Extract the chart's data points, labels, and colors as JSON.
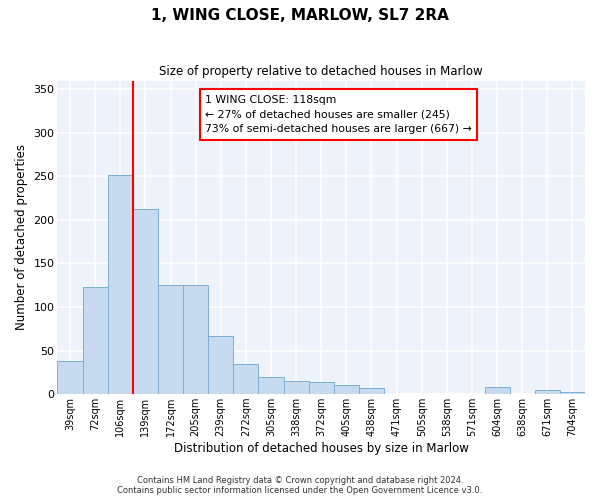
{
  "title": "1, WING CLOSE, MARLOW, SL7 2RA",
  "subtitle": "Size of property relative to detached houses in Marlow",
  "xlabel": "Distribution of detached houses by size in Marlow",
  "ylabel": "Number of detached properties",
  "footer_line1": "Contains HM Land Registry data © Crown copyright and database right 2024.",
  "footer_line2": "Contains public sector information licensed under the Open Government Licence v3.0.",
  "bar_labels": [
    "39sqm",
    "72sqm",
    "106sqm",
    "139sqm",
    "172sqm",
    "205sqm",
    "239sqm",
    "272sqm",
    "305sqm",
    "338sqm",
    "372sqm",
    "405sqm",
    "438sqm",
    "471sqm",
    "505sqm",
    "538sqm",
    "571sqm",
    "604sqm",
    "638sqm",
    "671sqm",
    "704sqm"
  ],
  "bar_values": [
    38,
    123,
    252,
    212,
    125,
    125,
    67,
    35,
    20,
    15,
    14,
    10,
    7,
    0,
    0,
    0,
    0,
    8,
    0,
    5,
    3
  ],
  "bar_color": "#c8daf0",
  "bar_edge_color": "#7aafd4",
  "vline_x_index": 2,
  "vline_color": "red",
  "ylim": [
    0,
    360
  ],
  "yticks": [
    0,
    50,
    100,
    150,
    200,
    250,
    300,
    350
  ],
  "annotation_title": "1 WING CLOSE: 118sqm",
  "annotation_line1": "← 27% of detached houses are smaller (245)",
  "annotation_line2": "73% of semi-detached houses are larger (667) →",
  "annotation_box_color": "red",
  "bg_color": "#eef2fa"
}
